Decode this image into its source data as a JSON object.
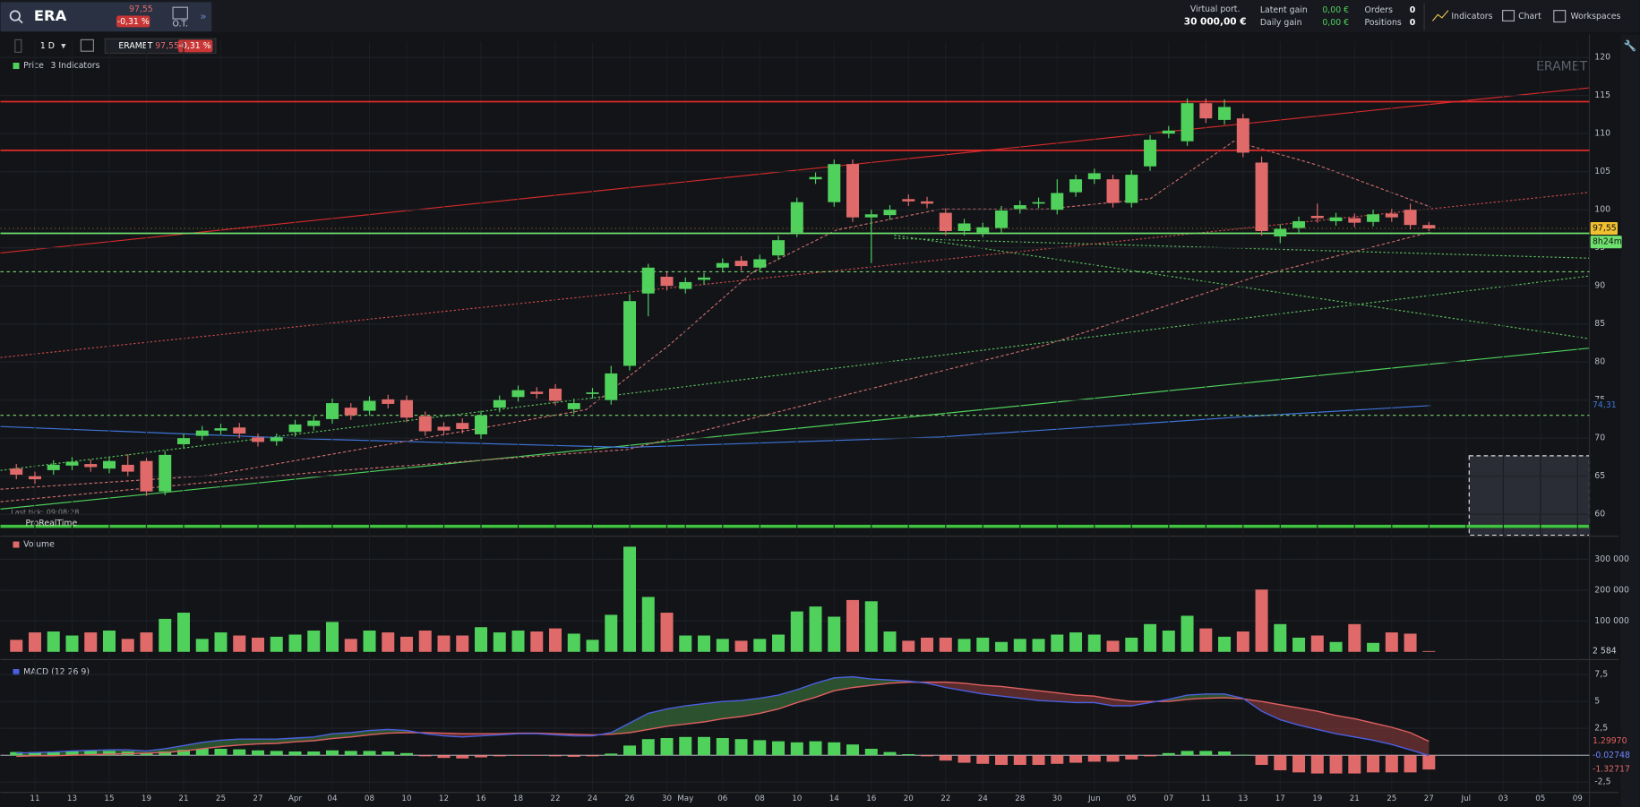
{
  "toolbar": {
    "symbol": "ERA",
    "price": "97,55",
    "change": "-0,31 %",
    "ot": "O.T.",
    "virtual_port_label": "Virtual port.",
    "virtual_port_value": "30 000,00 €",
    "latent_gain_label": "Latent gain",
    "daily_gain_label": "Daily gain",
    "latent_gain_value": "0,00 €",
    "daily_gain_value": "0,00 €",
    "orders_label": "Orders",
    "positions_label": "Positions",
    "orders_value": "0",
    "positions_value": "0",
    "indicators": "Indicators",
    "chart": "Chart",
    "workspaces": "Workspaces"
  },
  "chart_toolbar": {
    "interval": "1 D",
    "instrument": "ERAMET",
    "price": "97,55",
    "change": "-0,31 %",
    "price_legend": "Price",
    "indicators": "3 Indicators"
  },
  "watermark": "ERAMET",
  "last_tick": "Last tick: 09:08:28",
  "brand": "ProRealTime",
  "countdown": "8h24m",
  "chart_data": [
    {
      "type": "candlestick",
      "up_color": "#4fd15c",
      "down_color": "#e06a6a",
      "categories": [
        null,
        "11",
        null,
        "13",
        null,
        "15",
        null,
        "19",
        null,
        "21",
        null,
        "25",
        null,
        "27",
        null,
        "Apr",
        null,
        "04",
        null,
        "08",
        null,
        "10",
        null,
        "12",
        null,
        "16",
        null,
        "18",
        null,
        "22",
        null,
        "24",
        null,
        "26",
        null,
        "30",
        "May",
        null,
        "06",
        null,
        "08",
        null,
        "10",
        null,
        "14",
        null,
        "16",
        null,
        "20",
        null,
        "22",
        null,
        "24",
        null,
        "28",
        null,
        "30",
        null,
        "Jun",
        null,
        "05",
        null,
        "07",
        null,
        "11",
        null,
        "13",
        null,
        "17",
        null,
        "19",
        null,
        "21",
        null,
        "25",
        null,
        "27",
        null,
        "Jul",
        null,
        "03",
        null,
        "05",
        null,
        "09"
      ],
      "open": [
        66.0,
        65.0,
        65.8,
        66.4,
        66.6,
        66.0,
        66.5,
        67.0,
        63.0,
        69.2,
        70.3,
        71.0,
        71.4,
        70.1,
        69.6,
        70.8,
        71.6,
        72.5,
        74.0,
        73.6,
        75.1,
        75.0,
        72.9,
        71.5,
        72.0,
        70.5,
        74.0,
        75.4,
        76.1,
        76.5,
        73.8,
        75.8,
        75.0,
        79.5,
        89.0,
        91.2,
        89.6,
        90.8,
        92.4,
        93.3,
        92.4,
        94.0,
        97.0,
        104.0,
        101.0,
        106.0,
        99.0,
        99.3,
        101.4,
        101.1,
        99.6,
        97.2,
        97.0,
        97.6,
        100.1,
        100.8,
        100.0,
        102.3,
        104.0,
        104.0,
        100.9,
        105.7,
        110.0,
        109.0,
        114.0,
        111.8,
        112.0,
        106.2,
        96.5,
        97.6,
        99.2,
        98.5,
        98.9,
        98.4,
        99.5,
        100.0,
        98.0,
        null,
        null,
        null,
        null,
        null,
        null,
        null,
        null
      ],
      "high": [
        66.6,
        65.6,
        67.1,
        67.5,
        67.2,
        67.6,
        67.9,
        67.4,
        68.3,
        70.6,
        71.6,
        71.9,
        72.0,
        70.6,
        70.6,
        72.4,
        72.9,
        75.2,
        74.6,
        75.5,
        75.7,
        75.6,
        73.5,
        72.1,
        72.6,
        73.6,
        75.6,
        76.9,
        76.7,
        77.1,
        75.2,
        76.6,
        79.5,
        88.9,
        92.9,
        91.8,
        91.1,
        91.7,
        93.6,
        93.9,
        94.1,
        96.6,
        101.6,
        104.9,
        106.6,
        106.6,
        100.0,
        100.6,
        102.0,
        101.7,
        100.2,
        98.8,
        98.3,
        100.5,
        101.2,
        101.6,
        104.0,
        104.6,
        105.4,
        104.6,
        105.2,
        109.8,
        111.0,
        114.6,
        114.6,
        114.5,
        112.6,
        107.0,
        98.1,
        99.1,
        100.8,
        99.6,
        99.5,
        100.0,
        100.1,
        100.8,
        98.4,
        null,
        null,
        null,
        null,
        null,
        null,
        null,
        null
      ],
      "low": [
        64.6,
        64.0,
        65.2,
        65.8,
        65.6,
        65.4,
        65.0,
        62.4,
        62.5,
        68.6,
        69.7,
        70.4,
        70.0,
        68.9,
        69.0,
        70.2,
        71.0,
        71.9,
        72.4,
        73.0,
        73.9,
        72.1,
        70.3,
        70.4,
        70.6,
        69.9,
        73.4,
        74.8,
        75.2,
        74.3,
        73.2,
        75.2,
        74.4,
        78.9,
        86.0,
        89.4,
        89.0,
        90.2,
        91.8,
        92.0,
        91.8,
        93.4,
        96.4,
        103.4,
        100.4,
        98.4,
        93.0,
        98.7,
        100.5,
        100.2,
        96.6,
        96.6,
        96.4,
        97.0,
        99.5,
        100.2,
        99.4,
        101.7,
        103.4,
        100.3,
        100.3,
        105.1,
        109.4,
        108.4,
        111.4,
        111.2,
        106.9,
        96.6,
        95.6,
        97.0,
        98.3,
        97.9,
        97.7,
        97.8,
        98.4,
        97.4,
        97.2,
        null,
        null,
        null,
        null,
        null,
        null,
        null,
        null
      ],
      "close": [
        65.2,
        64.6,
        66.5,
        66.9,
        66.2,
        67.0,
        65.6,
        63.0,
        67.8,
        70.0,
        71.0,
        71.3,
        70.6,
        69.5,
        70.1,
        71.8,
        72.3,
        74.6,
        73.0,
        74.9,
        74.5,
        72.7,
        70.9,
        71.0,
        71.2,
        73.0,
        75.0,
        76.3,
        75.8,
        74.9,
        74.6,
        76.0,
        78.5,
        88.0,
        92.4,
        90.0,
        90.5,
        91.1,
        93.0,
        92.6,
        93.5,
        96.0,
        101.0,
        104.3,
        106.0,
        99.0,
        99.4,
        100.0,
        101.1,
        100.8,
        97.2,
        98.2,
        97.7,
        99.9,
        100.6,
        101.0,
        102.2,
        104.0,
        104.8,
        100.9,
        104.6,
        109.2,
        110.4,
        114.0,
        112.0,
        113.5,
        107.5,
        97.2,
        97.5,
        98.5,
        98.9,
        99.0,
        98.3,
        99.4,
        99.0,
        98.0,
        97.55,
        null,
        null,
        null,
        null,
        null,
        null,
        null,
        null
      ],
      "last_price": {
        "value": 97.55,
        "label": "97,55"
      },
      "ma_last": {
        "value": 74.31,
        "label": "74,31",
        "color": "#3f74d8"
      },
      "levels": [
        {
          "value": 114.2,
          "color": "#e02b2b",
          "dashed": false
        },
        {
          "value": 107.8,
          "color": "#e02b2b",
          "dashed": false
        },
        {
          "value": 96.9,
          "color": "#6ee06e",
          "dashed": false
        },
        {
          "value": 91.85,
          "color": "#7bd36b",
          "dashed": true
        },
        {
          "value": 73.0,
          "color": "#7bd36b",
          "dashed": true
        }
      ],
      "ylim": [
        57.25,
        122.06
      ],
      "yticks": [
        60,
        65,
        70,
        75,
        80,
        85,
        90,
        95,
        100,
        105,
        110,
        115,
        120
      ],
      "grid": true
    },
    {
      "type": "bar",
      "title": "Volume",
      "values": [
        39000,
        63000,
        66000,
        53000,
        63000,
        69000,
        42000,
        63000,
        107000,
        127000,
        42000,
        63000,
        53000,
        46000,
        49000,
        56000,
        69000,
        97000,
        42000,
        69000,
        63000,
        49000,
        69000,
        53000,
        53000,
        80000,
        63000,
        69000,
        66000,
        76000,
        59000,
        39000,
        120000,
        341000,
        178000,
        127000,
        53000,
        53000,
        42000,
        36000,
        42000,
        56000,
        131000,
        147000,
        114000,
        168000,
        164000,
        66000,
        36000,
        46000,
        46000,
        42000,
        46000,
        32000,
        42000,
        42000,
        56000,
        63000,
        56000,
        36000,
        46000,
        90000,
        69000,
        117000,
        76000,
        49000,
        66000,
        202000,
        90000,
        46000,
        53000,
        32000,
        90000,
        29000,
        63000,
        59000,
        2584
      ],
      "last_value_label": "2 584",
      "ylim": [
        -15000,
        368000
      ],
      "yticks": [
        {
          "value": 100000,
          "label": "100 000"
        },
        {
          "value": 200000,
          "label": "200 000"
        },
        {
          "value": 300000,
          "label": "300 000"
        }
      ]
    },
    {
      "type": "macd",
      "title": "MACD (12 26 9)",
      "macd": {
        "color": "#4b5fe0",
        "values": [
          0.2,
          0.25,
          0.3,
          0.4,
          0.45,
          0.5,
          0.5,
          0.4,
          0.6,
          0.9,
          1.2,
          1.4,
          1.5,
          1.5,
          1.5,
          1.6,
          1.7,
          2.0,
          2.1,
          2.3,
          2.4,
          2.3,
          2.0,
          1.8,
          1.7,
          1.8,
          1.9,
          2.0,
          2.0,
          1.9,
          1.8,
          1.8,
          2.1,
          3.0,
          3.9,
          4.3,
          4.6,
          4.8,
          5.0,
          5.1,
          5.3,
          5.6,
          6.1,
          6.7,
          7.2,
          7.3,
          7.1,
          7.0,
          6.9,
          6.7,
          6.3,
          6.0,
          5.7,
          5.5,
          5.3,
          5.1,
          5.0,
          4.9,
          4.9,
          4.6,
          4.6,
          4.9,
          5.2,
          5.6,
          5.7,
          5.7,
          5.3,
          4.1,
          3.3,
          2.8,
          2.4,
          2.0,
          1.7,
          1.4,
          1.0,
          0.5,
          -0.02748
        ]
      },
      "signal": {
        "color": "#e06060",
        "values": [
          -0.1,
          -0.05,
          -0.05,
          0,
          0.05,
          0.1,
          0.15,
          0.2,
          0.25,
          0.4,
          0.6,
          0.8,
          0.95,
          1.05,
          1.1,
          1.25,
          1.35,
          1.55,
          1.7,
          1.9,
          2.05,
          2.1,
          2.1,
          2.05,
          2.0,
          2.0,
          2.0,
          2.05,
          2.05,
          2.0,
          1.95,
          1.9,
          1.95,
          2.1,
          2.4,
          2.7,
          2.9,
          3.1,
          3.4,
          3.6,
          3.9,
          4.3,
          4.9,
          5.4,
          6.0,
          6.3,
          6.5,
          6.7,
          6.8,
          6.8,
          6.8,
          6.7,
          6.5,
          6.4,
          6.2,
          6.0,
          5.8,
          5.6,
          5.5,
          5.2,
          5.0,
          5.0,
          5.0,
          5.2,
          5.3,
          5.35,
          5.25,
          5.0,
          4.7,
          4.4,
          4.1,
          3.7,
          3.4,
          3.0,
          2.6,
          2.1,
          1.2997
        ]
      },
      "histogram": {
        "up_color": "#4fd15c",
        "down_color": "#e06a6a",
        "values": [
          0.3,
          0.3,
          0.35,
          0.4,
          0.4,
          0.4,
          0.35,
          0.2,
          0.35,
          0.5,
          0.6,
          0.6,
          0.55,
          0.45,
          0.4,
          0.35,
          0.35,
          0.45,
          0.4,
          0.4,
          0.35,
          0.2,
          -0.1,
          -0.25,
          -0.3,
          -0.2,
          -0.1,
          -0.05,
          -0.05,
          -0.1,
          -0.15,
          -0.1,
          0.15,
          0.9,
          1.5,
          1.6,
          1.7,
          1.7,
          1.6,
          1.5,
          1.4,
          1.3,
          1.2,
          1.3,
          1.2,
          1.0,
          0.6,
          0.3,
          0.1,
          -0.1,
          -0.5,
          -0.7,
          -0.8,
          -0.9,
          -0.9,
          -0.9,
          -0.8,
          -0.7,
          -0.6,
          -0.6,
          -0.4,
          -0.1,
          0.2,
          0.4,
          0.4,
          0.35,
          0.05,
          -0.9,
          -1.4,
          -1.6,
          -1.7,
          -1.7,
          -1.7,
          -1.6,
          -1.6,
          -1.6,
          -1.32717
        ]
      },
      "last_labels": {
        "signal": "1.29970",
        "macd": "-0.02748",
        "histogram": "-1.32717"
      },
      "ylim": [
        -3.36,
        8.51
      ],
      "yticks": [
        {
          "value": 7.5,
          "label": "7,5"
        },
        5,
        {
          "value": 2.5,
          "label": "2,5"
        },
        {
          "value": -2.5,
          "label": "-2,5"
        }
      ]
    }
  ]
}
